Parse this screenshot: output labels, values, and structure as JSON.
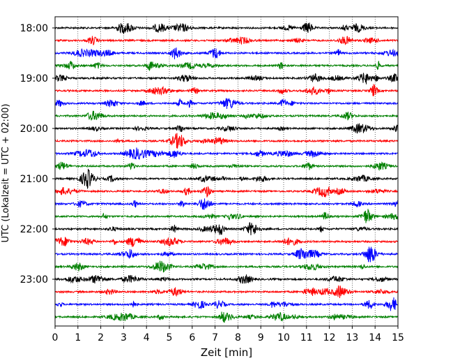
{
  "chart_data": {
    "type": "line",
    "title": "",
    "xlabel": "Zeit  [min]",
    "ylabel": "UTC (Lokalzeit = UTC + 02:00)",
    "xlim": [
      0,
      15
    ],
    "x_ticks": [
      "0",
      "1",
      "2",
      "3",
      "4",
      "5",
      "6",
      "7",
      "8",
      "9",
      "10",
      "11",
      "12",
      "13",
      "14",
      "15"
    ],
    "y_ticks": [
      "18:00",
      "19:00",
      "20:00",
      "21:00",
      "22:00",
      "23:00"
    ],
    "grid": "vertical dotted at each minute",
    "trace_interval_min": 15,
    "trace_color_cycle": [
      "#000000",
      "#ff0000",
      "#0000ff",
      "#008000"
    ],
    "trace_start_times": [
      "18:00",
      "18:15",
      "18:30",
      "18:45",
      "19:00",
      "19:15",
      "19:30",
      "19:45",
      "20:00",
      "20:15",
      "20:30",
      "20:45",
      "21:00",
      "21:15",
      "21:30",
      "21:45",
      "22:00",
      "22:15",
      "22:30",
      "22:45",
      "23:00",
      "23:15",
      "23:30",
      "23:45"
    ]
  }
}
